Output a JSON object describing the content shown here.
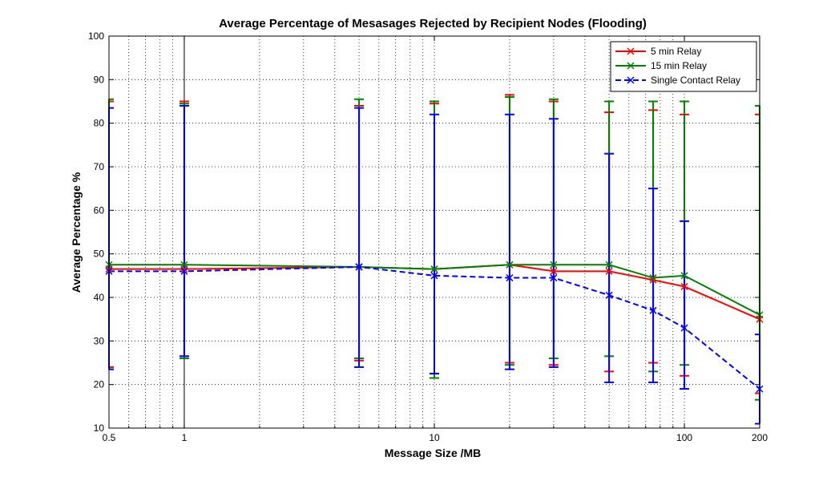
{
  "chart_data": {
    "type": "line",
    "title": "Average Percentage of Mesasages Rejected by Recipient Nodes (Flooding)",
    "xlabel": "Message Size /MB",
    "ylabel": "Average Percentage %",
    "xscale": "log",
    "xlim": [
      0.5,
      200
    ],
    "ylim": [
      10,
      100
    ],
    "xticks": [
      0.5,
      1,
      10,
      100,
      200
    ],
    "xtick_labels": [
      "0.5",
      "1",
      "10",
      "100",
      "200"
    ],
    "yticks": [
      10,
      20,
      30,
      40,
      50,
      60,
      70,
      80,
      90,
      100
    ],
    "ytick_labels": [
      "10",
      "20",
      "30",
      "40",
      "50",
      "60",
      "70",
      "80",
      "90",
      "100"
    ],
    "grid": "dotted",
    "legend_position": "top-right",
    "x": [
      0.5,
      1,
      5,
      10,
      20,
      30,
      50,
      75,
      100,
      200
    ],
    "series": [
      {
        "name": "5 min Relay",
        "color": "#ff0000",
        "line_style": "solid",
        "marker": "x",
        "values": [
          46.5,
          46.5,
          47.0,
          46.5,
          47.5,
          46.0,
          46.0,
          44.0,
          42.5,
          35.0
        ],
        "err_low": [
          24.0,
          26.5,
          25.5,
          22.5,
          25.0,
          24.5,
          23.0,
          25.0,
          22.0,
          18.0
        ],
        "err_high": [
          85.0,
          85.0,
          84.0,
          84.5,
          86.5,
          85.0,
          82.5,
          83.0,
          82.0,
          82.0
        ]
      },
      {
        "name": "15 min Relay",
        "color": "#008000",
        "line_style": "solid",
        "marker": "x",
        "values": [
          47.5,
          47.5,
          47.0,
          46.5,
          47.5,
          47.5,
          47.5,
          44.5,
          45.0,
          36.0
        ],
        "err_low": [
          23.5,
          26.0,
          26.0,
          21.5,
          24.5,
          26.0,
          26.5,
          23.0,
          24.5,
          16.5
        ],
        "err_high": [
          85.5,
          84.5,
          85.5,
          85.0,
          86.0,
          85.5,
          85.0,
          85.0,
          85.0,
          84.0
        ]
      },
      {
        "name": "Single Contact Relay",
        "color": "#0000ff",
        "line_style": "dashed",
        "marker": "x",
        "values": [
          46.0,
          46.0,
          47.0,
          45.0,
          44.5,
          44.5,
          40.5,
          37.0,
          33.0,
          19.0
        ],
        "err_low": [
          23.5,
          26.5,
          24.0,
          22.5,
          23.5,
          24.0,
          20.5,
          20.5,
          19.0,
          11.0
        ],
        "err_high": [
          83.5,
          84.0,
          83.5,
          82.0,
          82.0,
          81.0,
          73.0,
          65.0,
          57.5,
          31.5
        ]
      }
    ]
  }
}
